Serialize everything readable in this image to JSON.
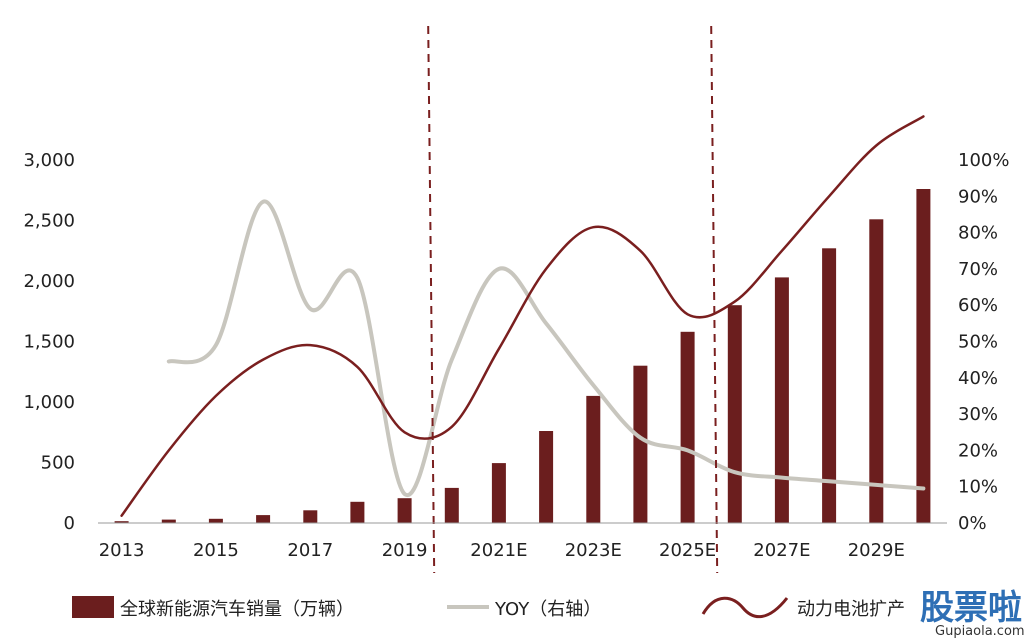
{
  "chart_data": {
    "type": "bar",
    "x": [
      "2013",
      "2014",
      "2015",
      "2016",
      "2017",
      "2018",
      "2019",
      "2020",
      "2021E",
      "2022E",
      "2023E",
      "2024E",
      "2025E",
      "2026E",
      "2027E",
      "2028E",
      "2029E",
      "2030E"
    ],
    "x_tick_labels": [
      "2013",
      "2015",
      "2017",
      "2019",
      "2021E",
      "2023E",
      "2025E",
      "2027E",
      "2029E"
    ],
    "y_tick_labels": [
      "0",
      "500",
      "1,000",
      "1,500",
      "2,000",
      "2,500",
      "3,000"
    ],
    "y2_tick_labels": [
      "0%",
      "10%",
      "20%",
      "30%",
      "40%",
      "50%",
      "60%",
      "70%",
      "80%",
      "90%",
      "100%"
    ],
    "ylim": [
      0,
      3000
    ],
    "y2lim": [
      0,
      1
    ],
    "grid": false,
    "legend_position": "bottom",
    "series": [
      {
        "name": "全球新能源汽车销量（万辆）",
        "type": "bar",
        "axis": "left",
        "color": "#6B1E1E",
        "values": [
          15,
          28,
          35,
          65,
          105,
          175,
          205,
          290,
          495,
          760,
          1050,
          1300,
          1580,
          1800,
          2030,
          2270,
          2510,
          2760
        ]
      },
      {
        "name": "YOY（右轴）",
        "type": "line",
        "axis": "right",
        "color": "#C8C6BE",
        "values": [
          null,
          0.445,
          0.49,
          0.885,
          0.59,
          0.675,
          0.08,
          0.45,
          0.7,
          0.55,
          0.38,
          0.235,
          0.2,
          0.14,
          0.125,
          0.115,
          0.105,
          0.095
        ]
      },
      {
        "name": "动力电池扩产",
        "type": "line",
        "axis": "right",
        "color": "#7A1F1F",
        "values": [
          0.02,
          0.2,
          0.35,
          0.45,
          0.49,
          0.43,
          0.25,
          0.265,
          0.48,
          0.7,
          0.815,
          0.75,
          0.575,
          0.61,
          0.75,
          0.9,
          1.04,
          1.12
        ]
      }
    ],
    "annotations": [
      "divider-after-2019",
      "divider-after-2025E"
    ]
  },
  "watermark": {
    "brand": "股票啦",
    "url": "Gupiaola.com"
  }
}
